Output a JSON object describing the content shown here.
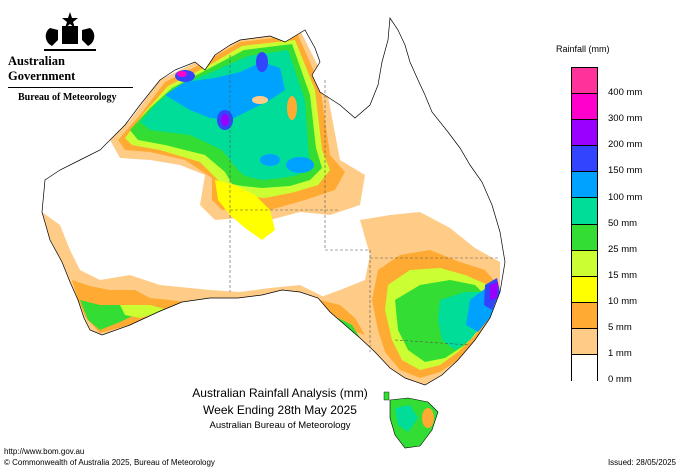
{
  "header": {
    "government": "Australian Government",
    "bureau": "Bureau of Meteorology"
  },
  "legend": {
    "title": "Rainfall (mm)",
    "bins": [
      {
        "label": "400 mm",
        "color": "#ff3399"
      },
      {
        "label": "300 mm",
        "color": "#ff00cc"
      },
      {
        "label": "200 mm",
        "color": "#9900ff"
      },
      {
        "label": "150 mm",
        "color": "#3344ff"
      },
      {
        "label": "100 mm",
        "color": "#00a2ff"
      },
      {
        "label": "50 mm",
        "color": "#00dd99"
      },
      {
        "label": "25 mm",
        "color": "#33dd33"
      },
      {
        "label": "15 mm",
        "color": "#ccff33"
      },
      {
        "label": "10 mm",
        "color": "#ffff00"
      },
      {
        "label": "5 mm",
        "color": "#ffaa33"
      },
      {
        "label": "1 mm",
        "color": "#ffcc88"
      },
      {
        "label": "0 mm",
        "color": "#ffffff"
      }
    ]
  },
  "caption": {
    "line1": "Australian Rainfall Analysis (mm)",
    "line2": "Week Ending 28th May 2025",
    "line3": "Australian Bureau of Meteorology"
  },
  "footer": {
    "url": "http://www.bom.gov.au",
    "copyright": "© Commonwealth of Australia 2025, Bureau of Meteorology",
    "issued": "Issued: 28/05/2025"
  }
}
